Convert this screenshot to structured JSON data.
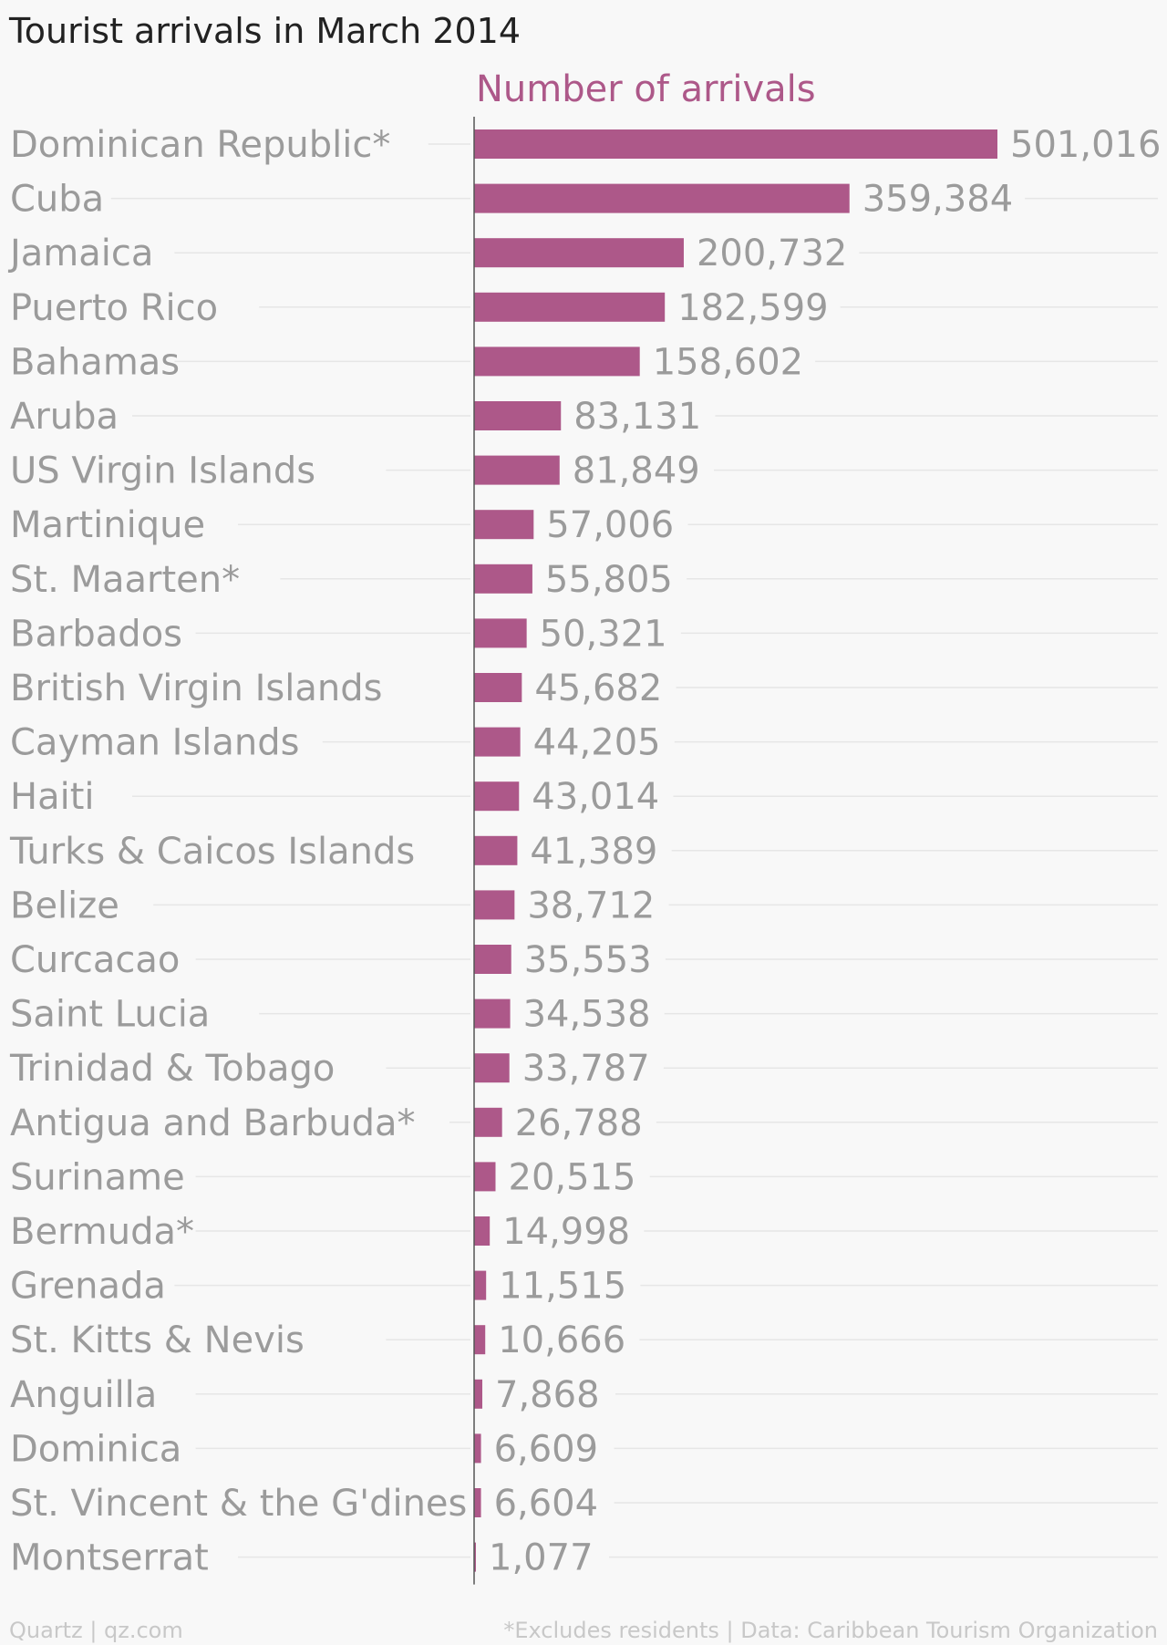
{
  "chart_data": {
    "type": "bar",
    "orientation": "horizontal",
    "title": "Tourist arrivals in March 2014",
    "series_name": "Number of arrivals",
    "categories": [
      "Dominican Republic*",
      "Cuba",
      "Jamaica",
      "Puerto Rico",
      "Bahamas",
      "Aruba",
      "US Virgin Islands",
      "Martinique",
      "St. Maarten*",
      "Barbados",
      "British Virgin Islands",
      "Cayman Islands",
      "Haiti",
      "Turks & Caicos Islands",
      "Belize",
      "Curcacao",
      "Saint Lucia",
      "Trinidad & Tobago",
      "Antigua and Barbuda*",
      "Suriname",
      "Bermuda*",
      "Grenada",
      "St. Kitts & Nevis",
      "Anguilla",
      "Dominica",
      "St. Vincent & the G'dines",
      "Montserrat"
    ],
    "values": [
      501016,
      359384,
      200732,
      182599,
      158602,
      83131,
      81849,
      57006,
      55805,
      50321,
      45682,
      44205,
      43014,
      41389,
      38712,
      35553,
      34538,
      33787,
      26788,
      20515,
      14998,
      11515,
      10666,
      7868,
      6609,
      6604,
      1077
    ],
    "value_labels": [
      "501,016",
      "359,384",
      "200,732",
      "182,599",
      "158,602",
      "83,131",
      "81,849",
      "57,006",
      "55,805",
      "50,321",
      "45,682",
      "44,205",
      "43,014",
      "41,389",
      "38,712",
      "35,553",
      "34,538",
      "33,787",
      "26,788",
      "20,515",
      "14,998",
      "11,515",
      "10,666",
      "7,868",
      "6,609",
      "6,604",
      "1,077"
    ],
    "xlim": [
      0,
      501016
    ],
    "grid": true,
    "bar_color": "#ad5889",
    "label_color": "#9b9b9b",
    "axis_color": "#555555",
    "grid_color": "#e6e6e6"
  },
  "footer": {
    "source_left": "Quartz | qz.com",
    "note_right": "*Excludes residents | Data: Caribbean Tourism Organization"
  }
}
